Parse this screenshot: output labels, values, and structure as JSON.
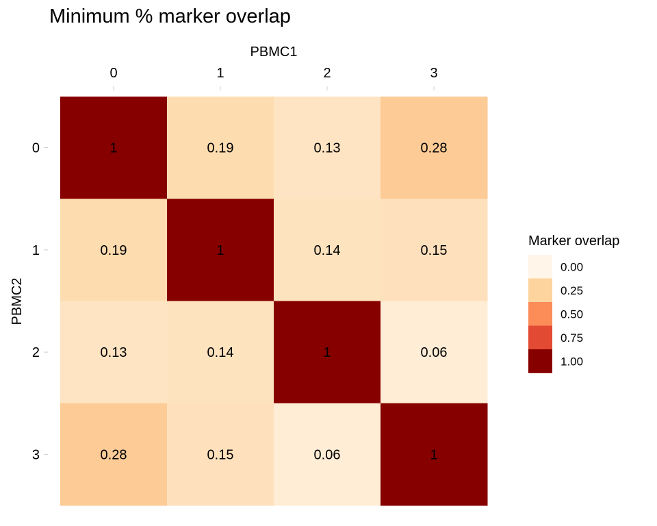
{
  "chart_data": {
    "type": "heatmap",
    "title": "Minimum % marker overlap",
    "xlabel": "PBMC1",
    "ylabel": "PBMC2",
    "x_categories": [
      "0",
      "1",
      "2",
      "3"
    ],
    "y_categories": [
      "0",
      "1",
      "2",
      "3"
    ],
    "x_axis_position": "top",
    "values": [
      [
        1,
        0.19,
        0.13,
        0.28
      ],
      [
        0.19,
        1,
        0.14,
        0.15
      ],
      [
        0.13,
        0.14,
        1,
        0.06
      ],
      [
        0.28,
        0.15,
        0.06,
        1
      ]
    ],
    "cell_labels": [
      [
        "1",
        "0.19",
        "0.13",
        "0.28"
      ],
      [
        "0.19",
        "1",
        "0.14",
        "0.15"
      ],
      [
        "0.13",
        "0.14",
        "1",
        "0.06"
      ],
      [
        "0.28",
        "0.15",
        "0.06",
        "1"
      ]
    ],
    "legend": {
      "title": "Marker overlap",
      "position": "right",
      "breaks": [
        "0.00",
        "0.25",
        "0.50",
        "0.75",
        "1.00"
      ],
      "break_values": [
        0,
        0.25,
        0.5,
        0.75,
        1
      ],
      "colors": [
        "#FFF5E8",
        "#FDD49E",
        "#FC8D59",
        "#E34A33",
        "#870000"
      ]
    },
    "grid": false
  }
}
